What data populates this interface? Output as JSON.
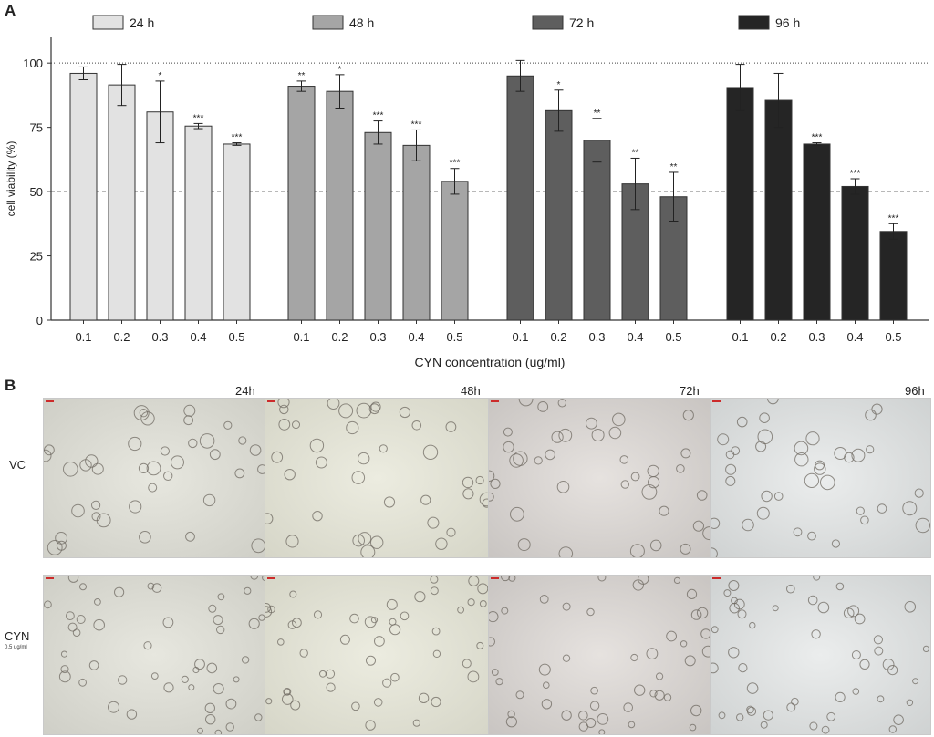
{
  "panels": {
    "a": "A",
    "b": "B"
  },
  "chart_data": {
    "type": "bar",
    "xlabel": "CYN concentration (ug/ml)",
    "ylabel": "cell viability (%)",
    "ylim": [
      0,
      110
    ],
    "yticks": [
      0,
      25,
      50,
      75,
      100
    ],
    "reference_lines": [
      {
        "y": 100,
        "style": "dotted"
      },
      {
        "y": 50,
        "style": "dashed"
      }
    ],
    "categories": [
      "0.1",
      "0.2",
      "0.3",
      "0.4",
      "0.5"
    ],
    "legend_position": "top",
    "series": [
      {
        "name": "24 h",
        "color": "#e2e2e2",
        "values": [
          96,
          91.5,
          81,
          75.5,
          68.5
        ],
        "errors": [
          2.5,
          8,
          12,
          1,
          0.5
        ],
        "significance": [
          "",
          "",
          "*",
          "***",
          "***"
        ]
      },
      {
        "name": "48 h",
        "color": "#a5a5a5",
        "values": [
          91,
          89,
          73,
          68,
          54
        ],
        "errors": [
          2,
          6.5,
          4.5,
          6,
          5
        ],
        "significance": [
          "**",
          "*",
          "***",
          "***",
          "***"
        ]
      },
      {
        "name": "72 h",
        "color": "#5e5e5e",
        "values": [
          95,
          81.5,
          70,
          53,
          48
        ],
        "errors": [
          6,
          8,
          8.5,
          10,
          9.5
        ],
        "significance": [
          "",
          "*",
          "**",
          "**",
          "**"
        ]
      },
      {
        "name": "96 h",
        "color": "#252525",
        "values": [
          90.5,
          85.5,
          68.5,
          52,
          34.5
        ],
        "errors": [
          9,
          10.5,
          0.5,
          3,
          3
        ],
        "significance": [
          "",
          "",
          "***",
          "***",
          "***"
        ]
      }
    ]
  },
  "micrographs": {
    "time_labels": [
      "24h",
      "48h",
      "72h",
      "96h"
    ],
    "rows": [
      {
        "label": "VC",
        "sub": ""
      },
      {
        "label": "CYN",
        "sub": "0.5 ug/ml"
      }
    ]
  }
}
